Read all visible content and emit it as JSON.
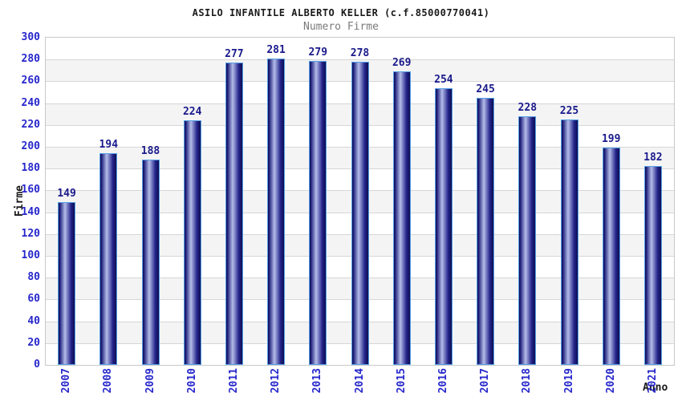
{
  "chart_data": {
    "type": "bar",
    "title": "ASILO INFANTILE ALBERTO KELLER (c.f.85000770041)",
    "subtitle": "Numero Firme",
    "xlabel": "Anno",
    "ylabel": "Firme",
    "categories": [
      "2007",
      "2008",
      "2009",
      "2010",
      "2011",
      "2012",
      "2013",
      "2014",
      "2015",
      "2016",
      "2017",
      "2018",
      "2019",
      "2020",
      "2021"
    ],
    "values": [
      149,
      194,
      188,
      224,
      277,
      281,
      279,
      278,
      269,
      254,
      245,
      228,
      225,
      199,
      182
    ],
    "ylim": [
      0,
      300
    ],
    "ytick_step": 20,
    "grid": true,
    "legend_position": "none",
    "colors": {
      "axis_text": "#2727cc",
      "value_label": "#1a1a8c",
      "title_text": "#1a1a1a",
      "subtitle_text": "#7b7b7b",
      "bar_dark": "#0e0e52",
      "bar_light": "#b4bde9",
      "bar_border": "#55a0e6",
      "band_fill": "#f4f4f4",
      "gridline": "#d6d6d6",
      "plot_border": "#c9c9c9"
    }
  }
}
